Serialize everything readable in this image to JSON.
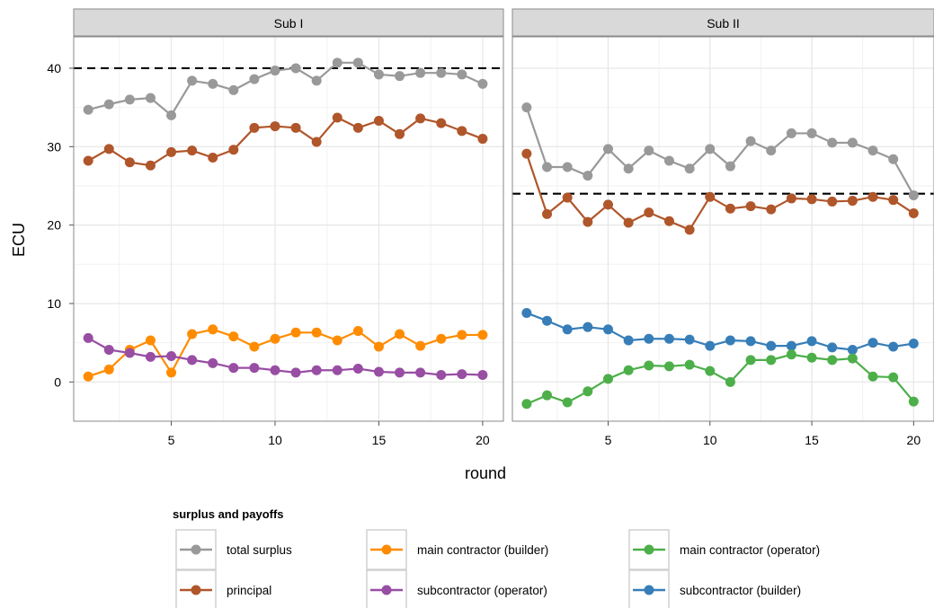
{
  "chart_data": {
    "type": "line",
    "xlabel": "round",
    "ylabel": "ECU",
    "xlim": [
      0.3,
      21
    ],
    "ylim": [
      -5,
      44
    ],
    "x_ticks": [
      5,
      10,
      15,
      20
    ],
    "y_ticks": [
      0,
      10,
      20,
      30,
      40
    ],
    "grid": true,
    "legend_title": "surplus and payoffs",
    "legend_position": "bottom",
    "legend_items": [
      {
        "label": "total surplus",
        "color": "#999999"
      },
      {
        "label": "main contractor (builder)",
        "color": "#FF8C00"
      },
      {
        "label": "main contractor (operator)",
        "color": "#4DAF4A"
      },
      {
        "label": "principal",
        "color": "#B0562B"
      },
      {
        "label": "subcontractor (operator)",
        "color": "#984EA3"
      },
      {
        "label": "subcontractor (builder)",
        "color": "#377EB8"
      }
    ],
    "x": [
      1,
      2,
      3,
      4,
      5,
      6,
      7,
      8,
      9,
      10,
      11,
      12,
      13,
      14,
      15,
      16,
      17,
      18,
      19,
      20
    ],
    "panels": [
      {
        "title": "Sub I",
        "reference_line": 40,
        "series": [
          {
            "name": "total surplus",
            "color": "#999999",
            "values": [
              34.7,
              35.4,
              36.0,
              36.2,
              34.0,
              38.4,
              38.0,
              37.2,
              38.6,
              39.7,
              40.0,
              38.4,
              40.7,
              40.7,
              39.2,
              39.0,
              39.4,
              39.4,
              39.2,
              38.0
            ]
          },
          {
            "name": "principal",
            "color": "#B0562B",
            "values": [
              28.2,
              29.7,
              28.0,
              27.6,
              29.3,
              29.5,
              28.6,
              29.6,
              32.4,
              32.6,
              32.4,
              30.6,
              33.7,
              32.4,
              33.3,
              31.6,
              33.6,
              33.0,
              32.0,
              31.0
            ]
          },
          {
            "name": "main contractor (builder)",
            "color": "#FF8C00",
            "values": [
              0.7,
              1.6,
              4.1,
              5.3,
              1.2,
              6.1,
              6.7,
              5.8,
              4.5,
              5.5,
              6.3,
              6.3,
              5.3,
              6.5,
              4.5,
              6.1,
              4.6,
              5.5,
              6.0,
              6.0
            ]
          },
          {
            "name": "subcontractor (operator)",
            "color": "#984EA3",
            "values": [
              5.6,
              4.1,
              3.7,
              3.2,
              3.3,
              2.8,
              2.4,
              1.8,
              1.8,
              1.5,
              1.2,
              1.5,
              1.5,
              1.7,
              1.3,
              1.2,
              1.2,
              0.9,
              1.0,
              0.9
            ]
          }
        ]
      },
      {
        "title": "Sub II",
        "reference_line": 24,
        "series": [
          {
            "name": "total surplus",
            "color": "#999999",
            "values": [
              35.0,
              27.4,
              27.4,
              26.3,
              29.7,
              27.2,
              29.5,
              28.2,
              27.2,
              29.7,
              27.5,
              30.7,
              29.5,
              31.7,
              31.7,
              30.5,
              30.5,
              29.5,
              28.4,
              23.8
            ]
          },
          {
            "name": "principal",
            "color": "#B0562B",
            "values": [
              29.1,
              21.4,
              23.5,
              20.4,
              22.6,
              20.3,
              21.6,
              20.5,
              19.4,
              23.6,
              22.1,
              22.4,
              22.0,
              23.4,
              23.3,
              23.0,
              23.1,
              23.6,
              23.2,
              21.5
            ]
          },
          {
            "name": "subcontractor (builder)",
            "color": "#377EB8",
            "values": [
              8.8,
              7.8,
              6.7,
              7.0,
              6.7,
              5.3,
              5.5,
              5.5,
              5.4,
              4.6,
              5.3,
              5.2,
              4.6,
              4.6,
              5.2,
              4.4,
              4.1,
              5.0,
              4.5,
              4.9
            ]
          },
          {
            "name": "main contractor (operator)",
            "color": "#4DAF4A",
            "values": [
              -2.8,
              -1.7,
              -2.6,
              -1.2,
              0.4,
              1.5,
              2.1,
              2.0,
              2.2,
              1.4,
              0.0,
              2.8,
              2.8,
              3.5,
              3.1,
              2.8,
              3.0,
              0.7,
              0.6,
              -2.5
            ]
          }
        ]
      }
    ]
  }
}
